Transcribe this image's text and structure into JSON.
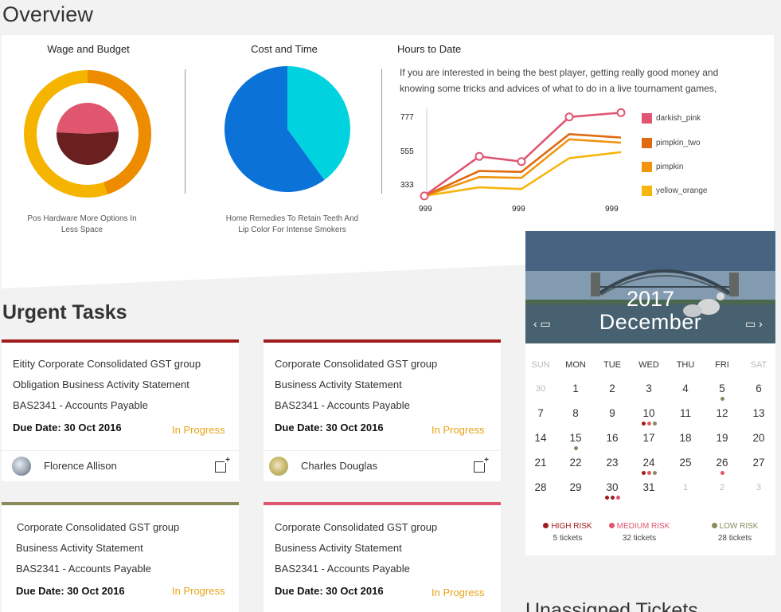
{
  "page": {
    "title": "Overview"
  },
  "overview": {
    "wage_budget": {
      "title": "Wage and Budget",
      "caption_l1": "Pos Hardware More Options In",
      "caption_l2": "Less Space"
    },
    "cost_time": {
      "title": "Cost  and Time",
      "caption_l1": "Home Remedies To Retain Teeth And",
      "caption_l2": "Lip Color For Intense Smokers"
    },
    "hours": {
      "title": "Hours to Date",
      "text_l1": "If you are interested in being the best player, getting really good money and",
      "text_l2": "knowing some tricks and advices of what to do in a live tournament games,",
      "y_ticks": [
        "777",
        "555",
        "333"
      ],
      "x_ticks": [
        "999",
        "999",
        "999"
      ],
      "legend": [
        {
          "name": "darkish_pink",
          "color": "#e05672"
        },
        {
          "name": "pimpkin_two",
          "color": "#e06a10"
        },
        {
          "name": "pimpkin",
          "color": "#f0950f"
        },
        {
          "name": "yellow_orange",
          "color": "#f7b50e"
        }
      ]
    }
  },
  "chart_data": [
    {
      "type": "pie",
      "title": "Wage and Budget",
      "slices": [
        {
          "label": "pink",
          "value": 48,
          "color": "#e0566e"
        },
        {
          "label": "maroon",
          "value": 52,
          "color": "#6b2020"
        }
      ],
      "ring_colors": [
        "#f5b400",
        "#ee8c00"
      ]
    },
    {
      "type": "pie",
      "title": "Cost  and Time",
      "slices": [
        {
          "label": "cyan",
          "value": 40,
          "color": "#00d3df"
        },
        {
          "label": "blue",
          "value": 60,
          "color": "#0b73d8"
        }
      ]
    },
    {
      "type": "line",
      "title": "Hours to Date",
      "ylim": [
        290,
        810
      ],
      "y_ticks": [
        333,
        555,
        777
      ],
      "x": [
        1,
        2,
        3,
        4,
        5
      ],
      "series": [
        {
          "name": "darkish_pink",
          "color": "#e05672",
          "values": [
            300,
            530,
            500,
            760,
            785
          ]
        },
        {
          "name": "pimpkin_two",
          "color": "#e06a10",
          "values": [
            300,
            445,
            440,
            660,
            640
          ]
        },
        {
          "name": "pimpkin",
          "color": "#f0950f",
          "values": [
            300,
            410,
            405,
            630,
            610
          ]
        },
        {
          "name": "yellow_orange",
          "color": "#f7b50e",
          "values": [
            300,
            350,
            340,
            520,
            555
          ]
        }
      ]
    }
  ],
  "urgent": {
    "title": "Urgent Tasks",
    "cards": [
      {
        "line1": "Eitity Corporate Consolidated GST group",
        "line2": "Obligation Business Activity Statement",
        "line3": "BAS2341 - Accounts Payable",
        "due": "Due Date: 30 Oct 2016",
        "status": "In Progress",
        "assignee": "Florence Allison",
        "border": "#a01c1c"
      },
      {
        "line1": "Corporate Consolidated GST group",
        "line2": "Business Activity Statement",
        "line3": "BAS2341 - Accounts Payable",
        "due": "Due Date: 30 Oct 2016",
        "status": "In Progress",
        "assignee": "Charles Douglas",
        "border": "#a01c1c"
      },
      {
        "line1": "Corporate Consolidated GST group",
        "line2": "Business Activity Statement",
        "line3": "BAS2341 - Accounts Payable",
        "due": "Due Date: 30 Oct 2016",
        "status": "In Progress",
        "border": "#8a8a5c"
      },
      {
        "line1": "Corporate Consolidated GST group",
        "line2": "Business Activity Statement",
        "line3": "BAS2341 - Accounts Payable",
        "due": "Due Date: 30 Oct 2016",
        "status": "In Progress",
        "border": "#e0566e"
      }
    ]
  },
  "calendar": {
    "year": "2017",
    "month": "December",
    "dow": [
      "SUN",
      "MON",
      "TUE",
      "WED",
      "THU",
      "FRI",
      "SAT"
    ],
    "weeks": [
      [
        "30",
        "1",
        "2",
        "3",
        "4",
        "5",
        "6"
      ],
      [
        "7",
        "8",
        "9",
        "10",
        "11",
        "12",
        "13"
      ],
      [
        "14",
        "15",
        "16",
        "17",
        "18",
        "19",
        "20"
      ],
      [
        "21",
        "22",
        "23",
        "24",
        "25",
        "26",
        "27"
      ],
      [
        "28",
        "29",
        "30",
        "31",
        "1",
        "2",
        "3"
      ]
    ],
    "muted": [
      "0-0",
      "4-4",
      "4-5",
      "4-6"
    ],
    "dots": {
      "0-5": [
        "#8a8a5c"
      ],
      "1-3": [
        "#a01c1c",
        "#e0566e",
        "#8a8a5c"
      ],
      "2-1": [
        "#8a8a5c"
      ],
      "3-3": [
        "#a01c1c",
        "#e0566e",
        "#8a8a5c"
      ],
      "3-5": [
        "#e0566e"
      ],
      "4-2": [
        "#a01c1c",
        "#a01c1c",
        "#e0566e"
      ]
    },
    "risk": [
      {
        "label": "HIGH RISK",
        "count": "5 tickets",
        "color": "#a01c1c"
      },
      {
        "label": "MEDIUM RISK",
        "count": "32 tickets",
        "color": "#e0566e"
      },
      {
        "label": "LOW RISK",
        "count": "28 tickets",
        "color": "#8a8a5c"
      }
    ]
  },
  "next_section": {
    "title": "Unassigned Tickets"
  }
}
